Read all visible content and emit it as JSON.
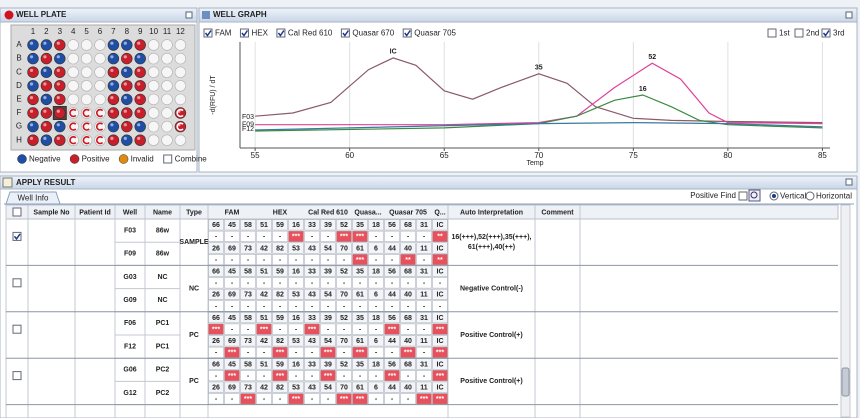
{
  "well_plate": {
    "title": "WELL PLATE",
    "columns": [
      1,
      2,
      3,
      4,
      5,
      6,
      7,
      8,
      9,
      10,
      11,
      12
    ],
    "rows": [
      "A",
      "B",
      "C",
      "D",
      "E",
      "F",
      "G",
      "H"
    ],
    "wells": [
      [
        "N",
        "N",
        "P",
        "E",
        "E",
        "E",
        "N",
        "N",
        "P",
        "E",
        "E",
        "E"
      ],
      [
        "N",
        "P",
        "N",
        "E",
        "E",
        "E",
        "N",
        "P",
        "N",
        "E",
        "E",
        "E"
      ],
      [
        "P",
        "N",
        "P",
        "E",
        "E",
        "E",
        "P",
        "N",
        "P",
        "E",
        "E",
        "E"
      ],
      [
        "N",
        "P",
        "P",
        "E",
        "E",
        "E",
        "N",
        "P",
        "P",
        "E",
        "E",
        "E"
      ],
      [
        "P",
        "N",
        "P",
        "E",
        "E",
        "E",
        "P",
        "N",
        "P",
        "E",
        "E",
        "E"
      ],
      [
        "P",
        "P",
        "P",
        "EC",
        "EC",
        "EC",
        "P",
        "P",
        "P",
        "E",
        "E",
        "PC"
      ],
      [
        "N",
        "P",
        "N",
        "EC",
        "EC",
        "EC",
        "N",
        "P",
        "N",
        "E",
        "E",
        "PC"
      ],
      [
        "P",
        "N",
        "P",
        "EC",
        "EC",
        "EC",
        "P",
        "N",
        "P",
        "E",
        "E",
        "E"
      ]
    ],
    "selected": {
      "row": "F",
      "column": 3
    },
    "legend": [
      {
        "label": "Negative",
        "color": "#1f4ea6"
      },
      {
        "label": "Positive",
        "color": "#c81f2a"
      },
      {
        "label": "Invalid",
        "color": "#e08a10"
      }
    ],
    "combine": {
      "label": "Combine",
      "checked": false
    }
  },
  "well_graph": {
    "title": "WELL GRAPH",
    "dyes": [
      {
        "label": "FAM",
        "checked": true
      },
      {
        "label": "HEX",
        "checked": true
      },
      {
        "label": "Cal Red 610",
        "checked": true
      },
      {
        "label": "Quasar 670",
        "checked": true
      },
      {
        "label": "Quasar 705",
        "checked": true
      }
    ],
    "derivatives": [
      {
        "label": "1st",
        "checked": false
      },
      {
        "label": "2nd",
        "checked": false
      },
      {
        "label": "3rd",
        "checked": true
      }
    ],
    "curve_labels": [
      "F03",
      "F09",
      "F12"
    ]
  },
  "chart_data": {
    "type": "line",
    "xlabel": "Temp",
    "ylabel": "-d(RFU) / dT",
    "xlim": [
      54.2,
      85.4
    ],
    "xticks": [
      55,
      60,
      65,
      70,
      75,
      80,
      85
    ],
    "ylim": [
      0,
      100
    ],
    "grid": true,
    "series": [
      {
        "color": "#8c5a6c",
        "x": [
          55,
          57,
          59,
          61,
          62.3,
          63.5,
          65,
          66.5,
          68,
          70,
          71.5,
          73,
          75,
          77,
          80,
          85
        ],
        "values": [
          30,
          33,
          43,
          74,
          85,
          78,
          54,
          46,
          57,
          70,
          61,
          39,
          28,
          26,
          25,
          24
        ]
      },
      {
        "color": "#e0409c",
        "x": [
          55,
          65,
          70,
          72,
          74,
          76,
          77.5,
          79,
          80,
          85
        ],
        "values": [
          22,
          22,
          24,
          30,
          57,
          80,
          65,
          33,
          24,
          23
        ]
      },
      {
        "color": "#3c8a44",
        "x": [
          55,
          65,
          70,
          72,
          74,
          75.5,
          77,
          78.5,
          80,
          85
        ],
        "values": [
          16,
          19,
          23,
          30,
          45,
          50,
          39,
          26,
          22,
          19
        ]
      },
      {
        "color": "#3a7a9a",
        "x": [
          55,
          70,
          75,
          80,
          85
        ],
        "values": [
          17,
          23,
          24,
          23,
          20
        ]
      }
    ],
    "annotations": [
      {
        "text": "IC",
        "x": 62.3,
        "y": 85
      },
      {
        "text": "35",
        "x": 70,
        "y": 70
      },
      {
        "text": "52",
        "x": 76,
        "y": 80
      },
      {
        "text": "16",
        "x": 75.5,
        "y": 50
      }
    ]
  },
  "apply_result": {
    "title": "APPLY RESULT",
    "tab": "Well Info",
    "positive_find": "Positive Find",
    "orientation": [
      {
        "label": "Vertical",
        "checked": true
      },
      {
        "label": "Horizontal",
        "checked": false
      }
    ],
    "columns": [
      "Sample No",
      "Patient Id",
      "Well",
      "Name",
      "Type"
    ],
    "dyes": [
      {
        "name": "FAM",
        "span": 3
      },
      {
        "name": "HEX",
        "span": 3
      },
      {
        "name": "Cal Red 610",
        "span": 3
      },
      {
        "name": "Quasa...",
        "span": 2
      },
      {
        "name": "Quasar 705",
        "span": 3
      },
      {
        "name": "Q...",
        "span": 1
      }
    ],
    "trailing_columns": [
      "Auto  Interpretation",
      "Comment"
    ],
    "groups": [
      {
        "checked": true,
        "type": "SAMPLE",
        "interpretation": [
          "16(+++),52(+++),35(+++),",
          "61(+++),40(++)"
        ],
        "wells": [
          {
            "well": "F03",
            "name": "86w",
            "values": [
              66,
              45,
              58,
              51,
              59,
              16,
              33,
              39,
              52,
              35,
              18,
              56,
              68,
              31,
              "IC"
            ],
            "marks": [
              "-",
              "-",
              "-",
              "-",
              "-",
              "***",
              "-",
              "-",
              "***",
              "***",
              "-",
              "-",
              "-",
              "-",
              "**"
            ]
          },
          {
            "well": "F09",
            "name": "86w",
            "values": [
              26,
              69,
              73,
              42,
              82,
              53,
              43,
              54,
              70,
              61,
              6,
              44,
              40,
              11,
              "IC"
            ],
            "marks": [
              "-",
              "-",
              "-",
              "-",
              "-",
              "-",
              "-",
              "-",
              "-",
              "***",
              "-",
              "-",
              "**",
              "-",
              "**"
            ]
          }
        ]
      },
      {
        "checked": false,
        "type": "NC",
        "interpretation": [
          "Negative Control(-)"
        ],
        "wells": [
          {
            "well": "G03",
            "name": "NC",
            "values": [
              66,
              45,
              58,
              51,
              59,
              16,
              33,
              39,
              52,
              35,
              18,
              56,
              68,
              31,
              "IC"
            ],
            "marks": [
              "-",
              "-",
              "-",
              "-",
              "-",
              "-",
              "-",
              "-",
              "-",
              "-",
              "-",
              "-",
              "-",
              "-",
              "-"
            ]
          },
          {
            "well": "G09",
            "name": "NC",
            "values": [
              26,
              69,
              73,
              42,
              82,
              53,
              43,
              54,
              70,
              61,
              6,
              44,
              40,
              11,
              "IC"
            ],
            "marks": [
              "-",
              "-",
              "-",
              "-",
              "-",
              "-",
              "-",
              "-",
              "-",
              "-",
              "-",
              "-",
              "-",
              "-",
              "-"
            ]
          }
        ]
      },
      {
        "checked": false,
        "type": "PC",
        "interpretation": [
          "Positive Control(+)"
        ],
        "wells": [
          {
            "well": "F06",
            "name": "PC1",
            "values": [
              66,
              45,
              58,
              51,
              59,
              16,
              33,
              39,
              52,
              35,
              18,
              56,
              68,
              31,
              "IC"
            ],
            "marks": [
              "***",
              "-",
              "-",
              "***",
              "-",
              "-",
              "***",
              "-",
              "-",
              "-",
              "-",
              "***",
              "-",
              "-",
              "***"
            ]
          },
          {
            "well": "F12",
            "name": "PC1",
            "values": [
              26,
              69,
              73,
              42,
              82,
              53,
              43,
              54,
              70,
              61,
              6,
              44,
              40,
              11,
              "IC"
            ],
            "marks": [
              "-",
              "***",
              "-",
              "-",
              "***",
              "-",
              "-",
              "***",
              "-",
              "***",
              "-",
              "-",
              "***",
              "-",
              "***"
            ]
          }
        ]
      },
      {
        "checked": false,
        "type": "PC",
        "interpretation": [
          "Positive Control(+)"
        ],
        "wells": [
          {
            "well": "G06",
            "name": "PC2",
            "values": [
              66,
              45,
              58,
              51,
              59,
              16,
              33,
              39,
              52,
              35,
              18,
              56,
              68,
              31,
              "IC"
            ],
            "marks": [
              "-",
              "***",
              "-",
              "-",
              "***",
              "-",
              "-",
              "***",
              "-",
              "-",
              "-",
              "***",
              "-",
              "-",
              "***"
            ]
          },
          {
            "well": "G12",
            "name": "PC2",
            "values": [
              26,
              69,
              73,
              42,
              82,
              53,
              43,
              54,
              70,
              61,
              6,
              44,
              40,
              11,
              "IC"
            ],
            "marks": [
              "-",
              "-",
              "***",
              "-",
              "-",
              "***",
              "-",
              "-",
              "***",
              "***",
              "-",
              "-",
              "-",
              "***",
              "***"
            ]
          }
        ]
      }
    ]
  }
}
